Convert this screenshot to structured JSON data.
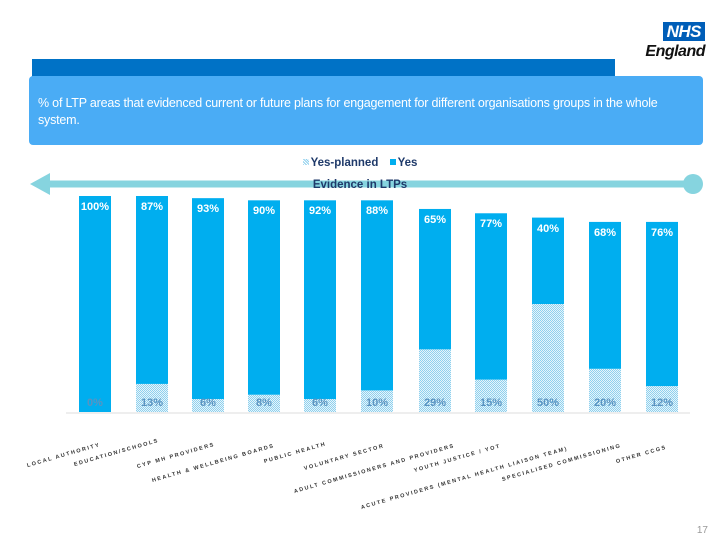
{
  "logo": {
    "nhs": "NHS",
    "england": "England"
  },
  "title": "% of LTP areas that evidenced current or future plans for engagement for different organisations groups in the whole system.",
  "page_number": "17",
  "arrow_label": "Evidence in LTPs",
  "colors": {
    "yes": "#00aeef",
    "planned": "#8fd0ee",
    "header": "#0072c6",
    "title_box": "#4aacf5",
    "arrow": "#86d4df"
  },
  "chart_data": {
    "type": "bar",
    "stacked": true,
    "legend_position": "top",
    "grid": false,
    "ylim": [
      0,
      100
    ],
    "categories": [
      "LOCAL AUTHORITY",
      "EDUCATION/SCHOOLS",
      "CYP MH PROVIDERS",
      "HEALTH & WELLBEING BOARDS",
      "PUBLIC HEALTH",
      "VOLUNTARY SECTOR",
      "ADULT COMMISSIONERS AND PROVIDERS",
      "ACUTE PROVIDERS (MENTAL HEALTH LIAISON TEAM)",
      "YOUTH JUSTICE / YOT",
      "SPECIALISED COMMISSIONING",
      "OTHER CCGS"
    ],
    "series": [
      {
        "name": "Yes-planned",
        "values": [
          0,
          13,
          6,
          8,
          6,
          10,
          29,
          15,
          50,
          20,
          12
        ],
        "labels": [
          "0%",
          "13%",
          "6%",
          "8%",
          "6%",
          "10%",
          "29%",
          "15%",
          "50%",
          "20%",
          "12%"
        ]
      },
      {
        "name": "Yes",
        "values": [
          100,
          87,
          93,
          90,
          92,
          88,
          65,
          77,
          40,
          68,
          76
        ],
        "labels": [
          "100%",
          "87%",
          "93%",
          "90%",
          "92%",
          "88%",
          "65%",
          "77%",
          "40%",
          "68%",
          "76%"
        ]
      }
    ]
  }
}
